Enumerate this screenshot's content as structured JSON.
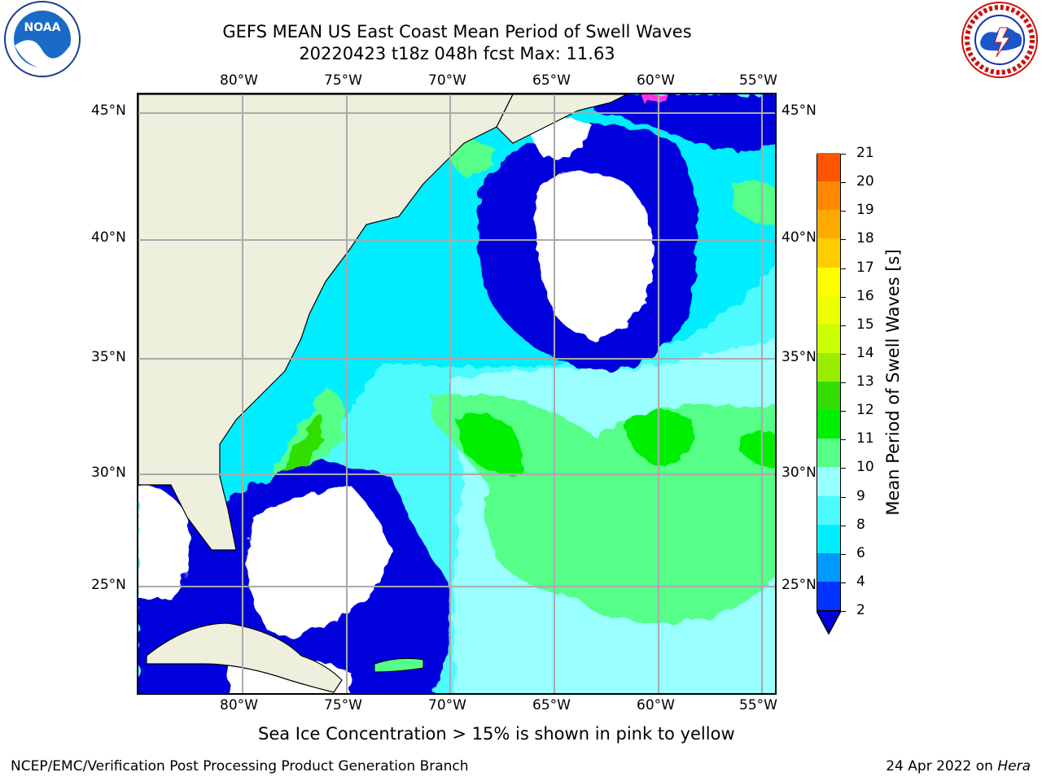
{
  "header": {
    "title_line1": "GEFS MEAN US East Coast Mean Period of Swell Waves",
    "title_line2": "20220423 t18z 048h fcst   Max: 11.63"
  },
  "logos": {
    "left": "NOAA",
    "left_ring": "NATIONAL OCEANIC AND ATMOSPHERIC ADMINISTRATION · U.S. DEPARTMENT OF COMMERCE",
    "right_ring": "NATIONAL WEATHER SERVICE"
  },
  "map": {
    "lon_ticks": [
      "80°W",
      "75°W",
      "70°W",
      "65°W",
      "60°W",
      "55°W"
    ],
    "lat_ticks": [
      "45°N",
      "40°N",
      "35°N",
      "30°N",
      "25°N"
    ],
    "colors": {
      "land": "#efefde",
      "ocean_base": "#4dfbff",
      "grid": "#aaaaaa"
    }
  },
  "colorbar": {
    "label": "Mean Period of Swell Waves [s]",
    "ticks": [
      "2",
      "4",
      "6",
      "8",
      "9",
      "10",
      "11",
      "12",
      "13",
      "14",
      "15",
      "16",
      "17",
      "18",
      "19",
      "20",
      "21"
    ],
    "colors": [
      "#0033ff",
      "#0099ff",
      "#00eeff",
      "#4dfbff",
      "#99ffff",
      "#55ff88",
      "#00ee00",
      "#33dd00",
      "#99ee00",
      "#ccff00",
      "#eeff00",
      "#ffff00",
      "#ffcc00",
      "#ffaa00",
      "#ff8800",
      "#ff5500",
      "#ff2200",
      "#ff0000"
    ],
    "extend_color": "#0000dd"
  },
  "footer": {
    "note": "Sea Ice Concentration > 15% is shown in pink to yellow",
    "left": "NCEP/EMC/Verification Post Processing Product Generation Branch",
    "right_date": "24 Apr 2022 on ",
    "right_host": "Hera"
  }
}
